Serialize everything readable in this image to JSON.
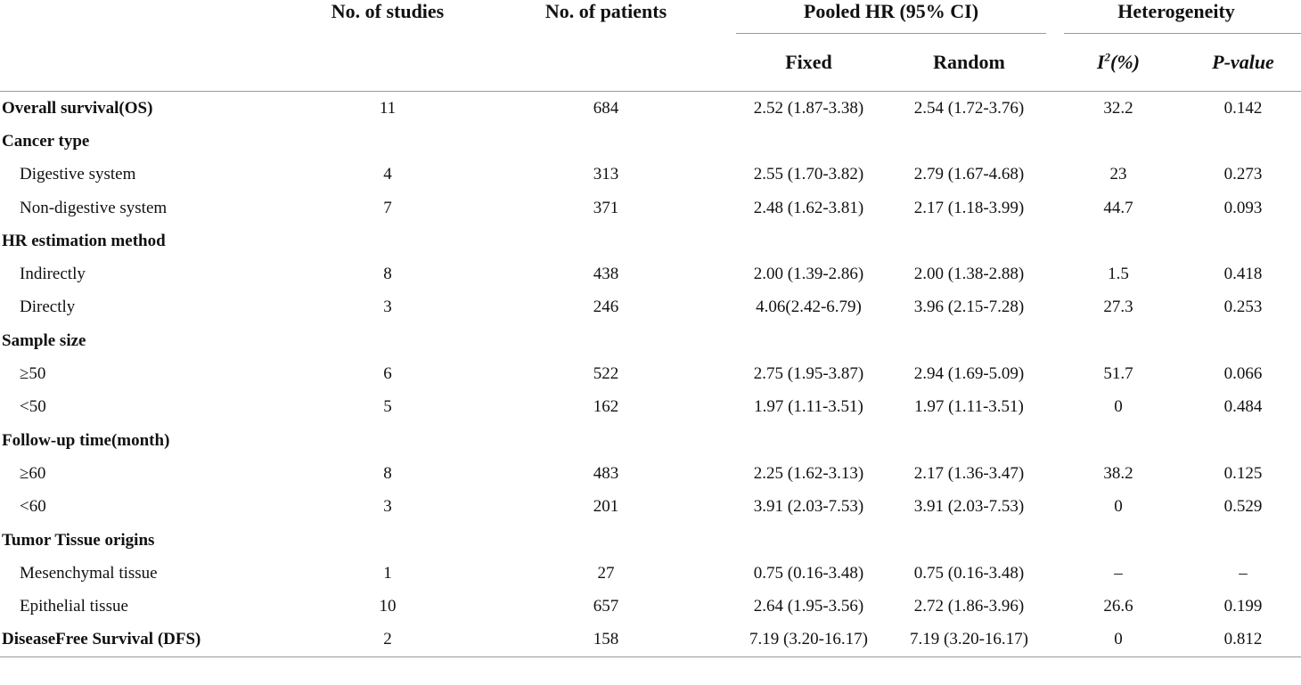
{
  "headers": {
    "studies": "No. of studies",
    "patients": "No. of patients",
    "pooled": "Pooled HR (95% CI)",
    "heterogeneity": "Heterogeneity",
    "fixed": "Fixed",
    "random": "Random",
    "i2_base": "I",
    "i2_sup": "2",
    "i2_suffix": "(%)",
    "pvalue": "P-value"
  },
  "rows": [
    {
      "label": "Overall survival(OS)",
      "type": "section",
      "studies": "11",
      "patients": "684",
      "fixed": "2.52 (1.87-3.38)",
      "random": "2.54 (1.72-3.76)",
      "i2": "32.2",
      "p": "0.142"
    },
    {
      "label": "Cancer type",
      "type": "section",
      "studies": "",
      "patients": "",
      "fixed": "",
      "random": "",
      "i2": "",
      "p": ""
    },
    {
      "label": "Digestive system",
      "type": "sub",
      "studies": "4",
      "patients": "313",
      "fixed": "2.55 (1.70-3.82)",
      "random": "2.79 (1.67-4.68)",
      "i2": "23",
      "p": "0.273"
    },
    {
      "label": "Non-digestive system",
      "type": "sub",
      "studies": "7",
      "patients": "371",
      "fixed": "2.48 (1.62-3.81)",
      "random": "2.17 (1.18-3.99)",
      "i2": "44.7",
      "p": "0.093"
    },
    {
      "label": "HR estimation method",
      "type": "section",
      "studies": "",
      "patients": "",
      "fixed": "",
      "random": "",
      "i2": "",
      "p": ""
    },
    {
      "label": "Indirectly",
      "type": "sub",
      "studies": "8",
      "patients": "438",
      "fixed": "2.00 (1.39-2.86)",
      "random": "2.00 (1.38-2.88)",
      "i2": "1.5",
      "p": "0.418"
    },
    {
      "label": "Directly",
      "type": "sub",
      "studies": "3",
      "patients": "246",
      "fixed": "4.06(2.42-6.79)",
      "random": "3.96 (2.15-7.28)",
      "i2": "27.3",
      "p": "0.253"
    },
    {
      "label": "Sample size",
      "type": "section",
      "studies": "",
      "patients": "",
      "fixed": "",
      "random": "",
      "i2": "",
      "p": ""
    },
    {
      "label": "≥50",
      "type": "sub",
      "studies": "6",
      "patients": "522",
      "fixed": "2.75 (1.95-3.87)",
      "random": "2.94 (1.69-5.09)",
      "i2": "51.7",
      "p": "0.066"
    },
    {
      "label": "<50",
      "type": "sub",
      "studies": "5",
      "patients": "162",
      "fixed": "1.97 (1.11-3.51)",
      "random": "1.97 (1.11-3.51)",
      "i2": "0",
      "p": "0.484"
    },
    {
      "label": "Follow-up time(month)",
      "type": "section",
      "studies": "",
      "patients": "",
      "fixed": "",
      "random": "",
      "i2": "",
      "p": ""
    },
    {
      "label": "≥60",
      "type": "sub",
      "studies": "8",
      "patients": "483",
      "fixed": "2.25 (1.62-3.13)",
      "random": "2.17 (1.36-3.47)",
      "i2": "38.2",
      "p": "0.125"
    },
    {
      "label": "<60",
      "type": "sub",
      "studies": "3",
      "patients": "201",
      "fixed": "3.91 (2.03-7.53)",
      "random": "3.91 (2.03-7.53)",
      "i2": "0",
      "p": "0.529"
    },
    {
      "label": "Tumor Tissue origins",
      "type": "section",
      "studies": "",
      "patients": "",
      "fixed": "",
      "random": "",
      "i2": "",
      "p": ""
    },
    {
      "label": "Mesenchymal tissue",
      "type": "sub",
      "studies": "1",
      "patients": "27",
      "fixed": "0.75 (0.16-3.48)",
      "random": "0.75 (0.16-3.48)",
      "i2": "–",
      "p": "–"
    },
    {
      "label": "Epithelial tissue",
      "type": "sub",
      "studies": "10",
      "patients": "657",
      "fixed": "2.64 (1.95-3.56)",
      "random": "2.72 (1.86-3.96)",
      "i2": "26.6",
      "p": "0.199"
    },
    {
      "label": "DiseaseFree Survival (DFS)",
      "type": "section",
      "studies": "2",
      "patients": "158",
      "fixed": "7.19 (3.20-16.17)",
      "random": "7.19 (3.20-16.17)",
      "i2": "0",
      "p": "0.812"
    }
  ]
}
